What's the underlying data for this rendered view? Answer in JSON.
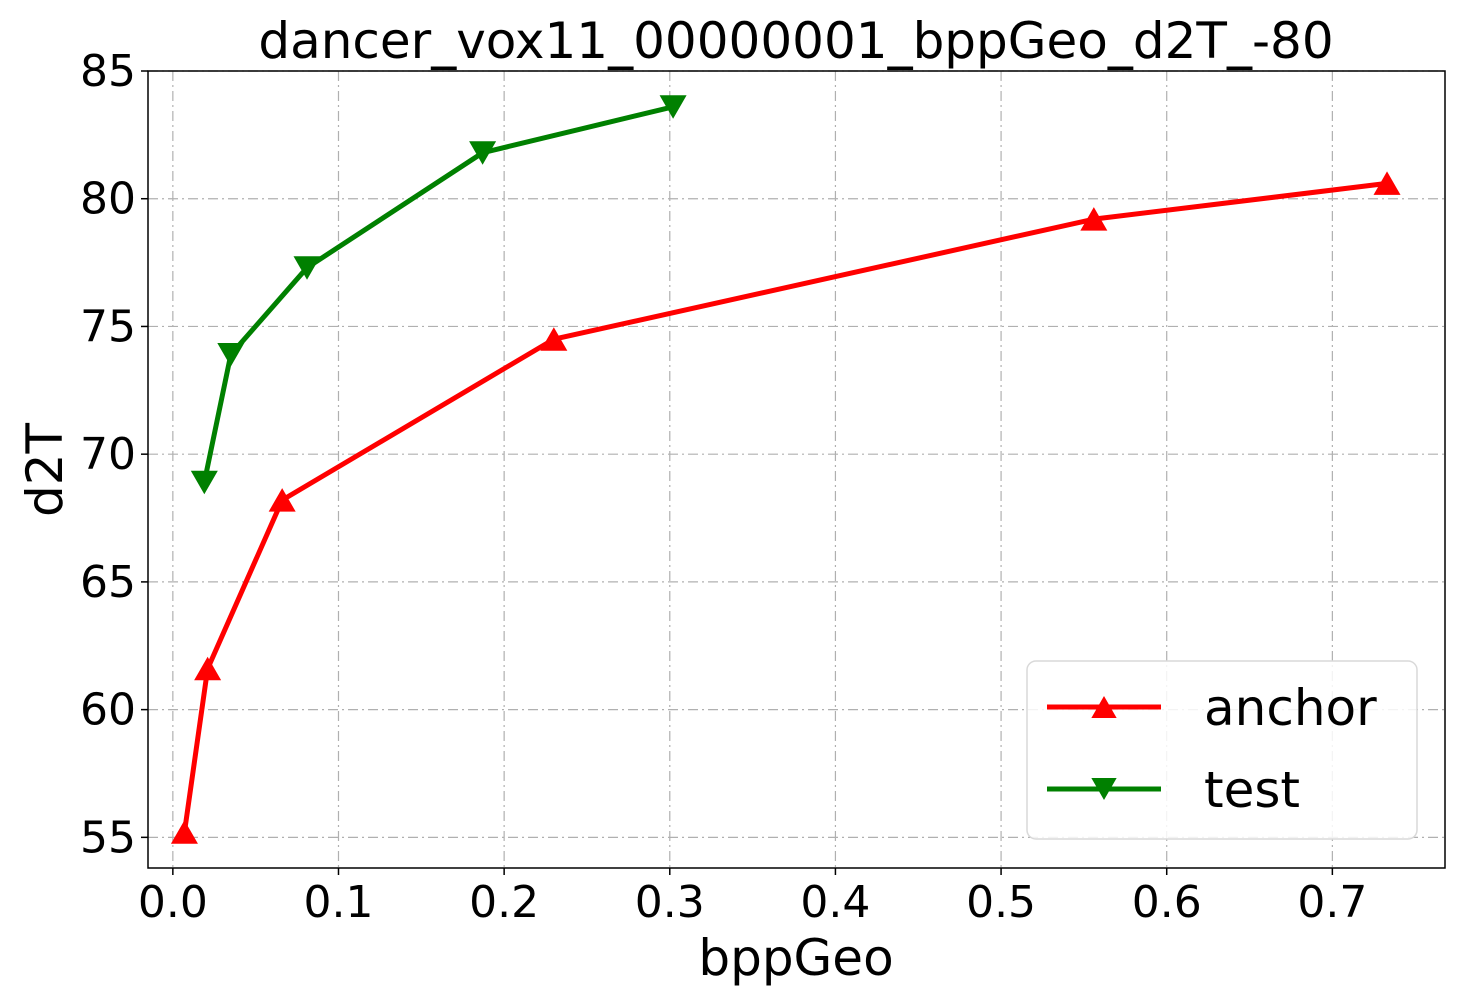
{
  "chart_data": {
    "type": "line",
    "title": "dancer_vox11_00000001_bppGeo_d2T_-80",
    "xlabel": "bppGeo",
    "ylabel": "d2T",
    "xlim": [
      -0.015,
      0.768
    ],
    "ylim": [
      53.8,
      85.0
    ],
    "xticks": [
      0.0,
      0.1,
      0.2,
      0.3,
      0.4,
      0.5,
      0.6,
      0.7
    ],
    "xtick_labels": [
      "0.0",
      "0.1",
      "0.2",
      "0.3",
      "0.4",
      "0.5",
      "0.6",
      "0.7"
    ],
    "yticks": [
      55,
      60,
      65,
      70,
      75,
      80,
      85
    ],
    "ytick_labels": [
      "55",
      "60",
      "65",
      "70",
      "75",
      "80",
      "85"
    ],
    "grid": true,
    "legend_position": "lower-right",
    "series": [
      {
        "name": "anchor",
        "color": "#ff0000",
        "marker": "triangle-up",
        "x": [
          0.007,
          0.021,
          0.066,
          0.23,
          0.556,
          0.733
        ],
        "y": [
          55.2,
          61.6,
          68.2,
          74.5,
          79.2,
          80.6
        ]
      },
      {
        "name": "test",
        "color": "#008000",
        "marker": "triangle-down",
        "x": [
          0.019,
          0.035,
          0.081,
          0.187,
          0.302
        ],
        "y": [
          68.9,
          73.9,
          77.3,
          81.8,
          83.6
        ]
      }
    ]
  }
}
